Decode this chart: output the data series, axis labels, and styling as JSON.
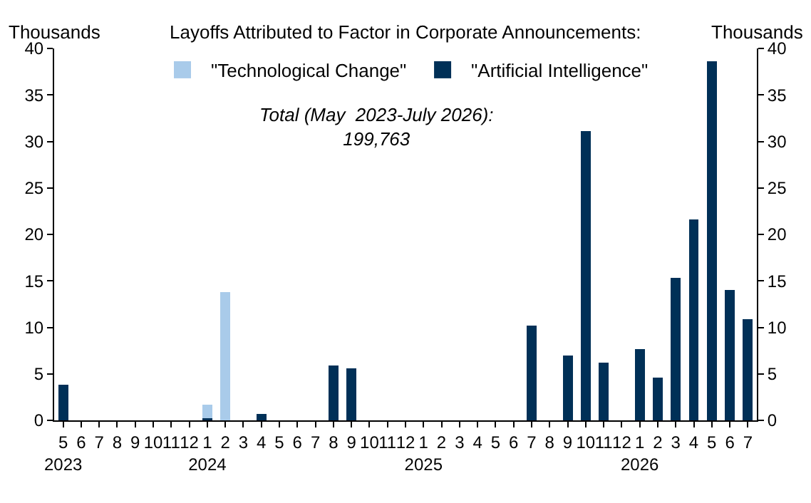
{
  "chart_data": {
    "type": "bar",
    "title": "Layoffs Attributed to Factor in Corporate Announcements:",
    "ylabel": "Thousands",
    "y2label": "Thousands",
    "categories": [
      "5\n2023",
      "6",
      "7",
      "8",
      "9",
      "10",
      "11",
      "12",
      "1\n2024",
      "2",
      "3",
      "4",
      "5",
      "6",
      "7",
      "8",
      "9",
      "10",
      "11",
      "12",
      "1\n2025",
      "2",
      "3",
      "4",
      "5",
      "6",
      "7",
      "8",
      "9",
      "10",
      "11",
      "12",
      "1\n2026",
      "2",
      "3",
      "4",
      "5",
      "6",
      "7"
    ],
    "series": [
      {
        "name": "\"Artificial Intelligence\"",
        "color": "#003057",
        "values": [
          3.8,
          null,
          null,
          null,
          null,
          null,
          null,
          null,
          0.2,
          null,
          null,
          0.7,
          null,
          null,
          null,
          5.9,
          5.6,
          null,
          null,
          null,
          null,
          null,
          null,
          null,
          null,
          null,
          10.2,
          null,
          7.0,
          31.1,
          6.2,
          null,
          7.7,
          4.6,
          15.3,
          21.6,
          38.6,
          14.0,
          10.9
        ]
      },
      {
        "name": "\"Technological Change\"",
        "color": "#a9cbea",
        "values": [
          null,
          null,
          null,
          null,
          null,
          null,
          null,
          null,
          1.5,
          13.8,
          null,
          null,
          null,
          null,
          null,
          null,
          null,
          null,
          null,
          null,
          null,
          null,
          null,
          null,
          null,
          null,
          null,
          null,
          null,
          null,
          null,
          null,
          null,
          null,
          null,
          null,
          null,
          null,
          null
        ]
      }
    ],
    "stacked": true,
    "ylim": [
      0,
      40
    ],
    "yticks": [
      0,
      5,
      10,
      15,
      20,
      25,
      30,
      35,
      40
    ],
    "y2lim": [
      0,
      40
    ],
    "y2ticks": [
      0,
      5,
      10,
      15,
      20,
      25,
      30,
      35,
      40
    ],
    "annotations": [
      "Total (May  2023-July 2026):\n199,763"
    ],
    "legend": "top"
  }
}
